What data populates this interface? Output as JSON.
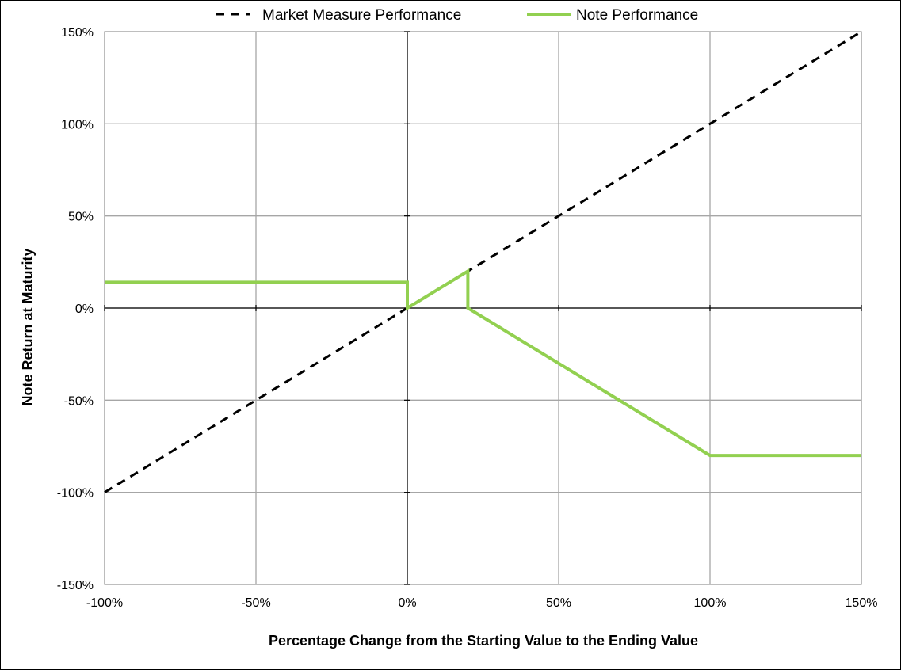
{
  "chart_data": {
    "type": "line",
    "title": "",
    "xlabel": "Percentage Change from the Starting Value to the Ending Value",
    "ylabel": "Note Return at Maturity",
    "xlim": [
      -100,
      150
    ],
    "ylim": [
      -150,
      150
    ],
    "x_ticks": [
      -100,
      -50,
      0,
      50,
      100,
      150
    ],
    "y_ticks": [
      -150,
      -100,
      -50,
      0,
      50,
      100,
      150
    ],
    "x_tick_labels": [
      "-100%",
      "-50%",
      "0%",
      "50%",
      "100%",
      "150%"
    ],
    "y_tick_labels": [
      "-150%",
      "-100%",
      "-50%",
      "0%",
      "50%",
      "100%",
      "150%"
    ],
    "grid": true,
    "legend_position": "top",
    "series": [
      {
        "name": "Market Measure Performance",
        "style": "dashed",
        "color": "#000000",
        "points": [
          [
            -100,
            -100
          ],
          [
            150,
            150
          ]
        ]
      },
      {
        "name": "Note Performance",
        "style": "solid",
        "color": "#92d050",
        "points": [
          [
            -100,
            14
          ],
          [
            0,
            14
          ],
          [
            0,
            0
          ],
          [
            20,
            20
          ],
          [
            20,
            0
          ],
          [
            100,
            -80
          ],
          [
            150,
            -80
          ]
        ]
      }
    ]
  }
}
